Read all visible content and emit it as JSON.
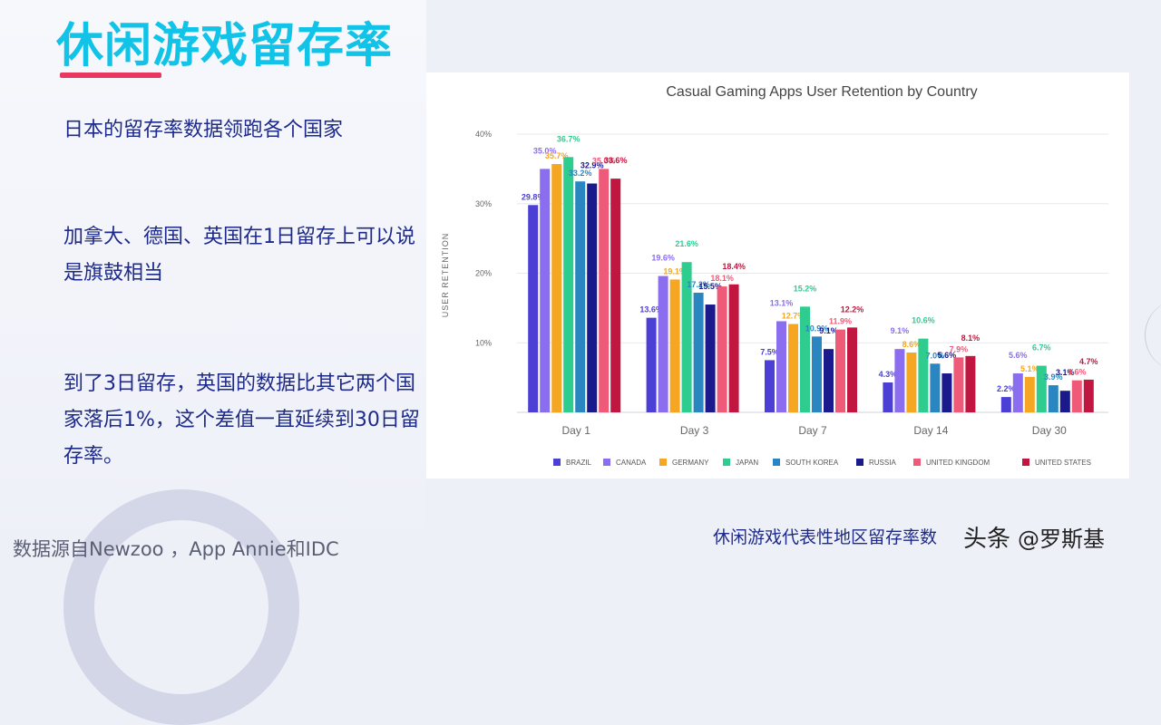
{
  "slide": {
    "title": "休闲游戏留存率",
    "bullets": [
      "日本的留存率数据领跑各个国家",
      "加拿大、德国、英国在1日留存上可以说是旗鼓相当",
      "到了3日留存，英国的数据比其它两个国家落后1%，这个差值一直延续到30日留存率。"
    ],
    "source": "数据源自Newzoo ，App Annie和IDC",
    "caption": "休闲游戏代表性地区留存率数",
    "watermark_brand": "头条",
    "watermark_handle": "@罗斯基"
  },
  "chart_data": {
    "type": "bar",
    "title": "Casual Gaming Apps User Retention by Country",
    "xlabel": "",
    "ylabel": "USER RETENTION",
    "ylim": [
      0,
      40
    ],
    "yticks": [
      "",
      "10%",
      "20%",
      "30%",
      "40%"
    ],
    "grid": true,
    "legend_position": "bottom",
    "categories": [
      "Day 1",
      "Day 3",
      "Day 7",
      "Day 14",
      "Day 30"
    ],
    "series": [
      {
        "name": "BRAZIL",
        "color": "#4b3fd6",
        "values": [
          29.8,
          13.6,
          7.5,
          4.3,
          2.2
        ],
        "labels": [
          "29.8%",
          "13.6%",
          "7.5%",
          "4.3%",
          "2.2%"
        ]
      },
      {
        "name": "CANADA",
        "color": "#8b6ef0",
        "values": [
          35.0,
          19.6,
          13.1,
          9.1,
          5.6
        ],
        "labels": [
          "35.0%",
          "19.6%",
          "13.1%",
          "9.1%",
          "5.6%"
        ]
      },
      {
        "name": "GERMANY",
        "color": "#f5a623",
        "values": [
          35.7,
          19.1,
          12.7,
          8.6,
          5.1
        ],
        "labels": [
          "35.7%",
          "19.1%",
          "12.7%",
          "8.6%",
          "5.1%"
        ]
      },
      {
        "name": "JAPAN",
        "color": "#2ecc8f",
        "values": [
          36.7,
          21.6,
          15.2,
          10.6,
          6.7
        ],
        "labels": [
          "36.7%",
          "21.6%",
          "15.2%",
          "10.6%",
          "6.7%"
        ]
      },
      {
        "name": "SOUTH KOREA",
        "color": "#2a86c1",
        "values": [
          33.2,
          17.2,
          10.9,
          7.0,
          3.9
        ],
        "labels": [
          "33.2%",
          "17.2%",
          "10.9%",
          "7.0%",
          "3.9%"
        ]
      },
      {
        "name": "RUSSIA",
        "color": "#1a1a8c",
        "values": [
          32.9,
          15.5,
          9.1,
          5.6,
          3.1
        ],
        "labels": [
          "32.9%",
          "15.5%",
          "9.1%",
          "5.6%",
          "3.1%"
        ]
      },
      {
        "name": "UNITED KINGDOM",
        "color": "#ef5a78",
        "values": [
          35.0,
          18.1,
          11.9,
          7.9,
          4.6
        ],
        "labels": [
          "35.0%",
          "18.1%",
          "11.9%",
          "7.9%",
          "4.6%"
        ]
      },
      {
        "name": "UNITED STATES",
        "color": "#c0163f",
        "values": [
          33.6,
          18.4,
          12.2,
          8.1,
          4.7
        ],
        "labels": [
          "33.6%",
          "18.4%",
          "12.2%",
          "8.1%",
          "4.7%"
        ]
      }
    ]
  }
}
